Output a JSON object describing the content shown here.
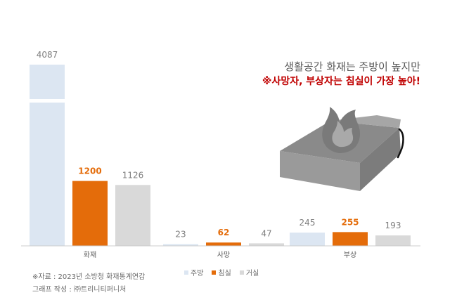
{
  "chart_data": {
    "type": "bar",
    "categories": [
      "화재",
      "사망",
      "부상"
    ],
    "series": [
      {
        "name": "주방",
        "values": [
          4087,
          23,
          245
        ],
        "color": "#dce6f2"
      },
      {
        "name": "침실",
        "values": [
          1200,
          62,
          255
        ],
        "color": "#e46c0a"
      },
      {
        "name": "거실",
        "values": [
          1126,
          47,
          193
        ],
        "color": "#d9d9d9"
      }
    ],
    "value_label_colors": [
      "#7f7f7f",
      "#e46c0a",
      "#7f7f7f"
    ],
    "axis_break": true,
    "title": "",
    "xlabel": "",
    "ylabel": "",
    "grid": false,
    "legend_position": "bottom"
  },
  "headline": {
    "line1": "생활공간 화재는 주방이 높지만",
    "line2": "※사망자, 부상자는 침실이 가장 높아!"
  },
  "footnotes": {
    "source": "※자료 : 2023년 소방청 화재통계연감",
    "author": "그래프 작성 : ㈜트리니티퍼니처"
  },
  "illustration": {
    "icons": [
      "bed-icon",
      "fire-icon"
    ]
  }
}
